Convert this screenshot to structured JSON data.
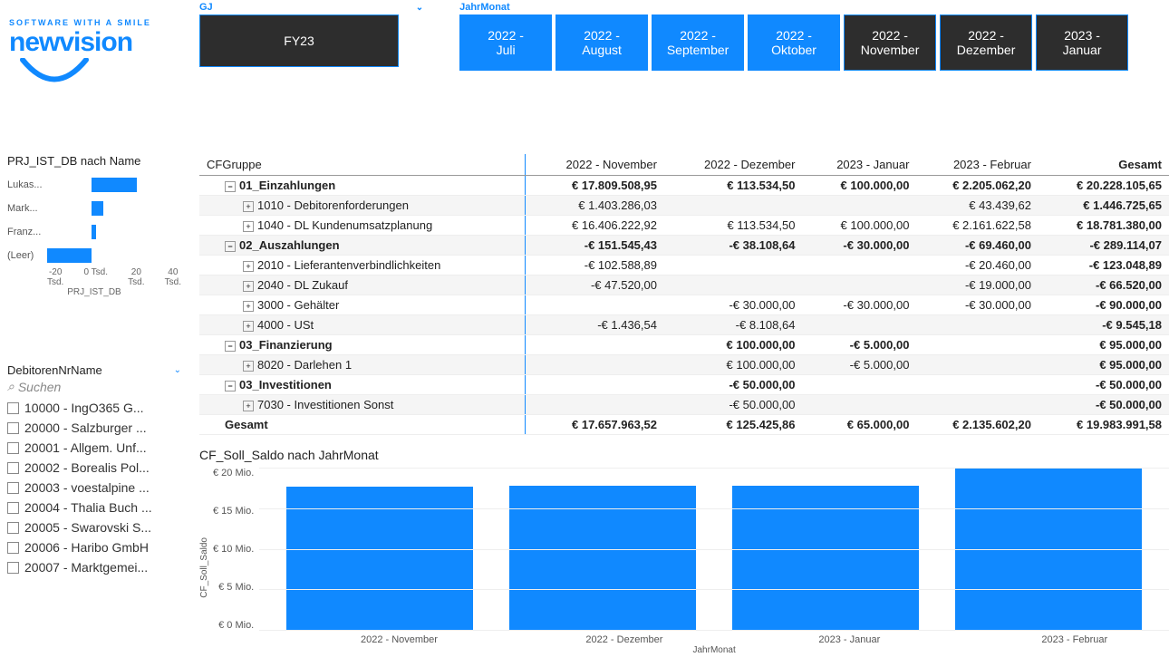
{
  "logo": {
    "tagline": "SOFTWARE WITH A SMILE",
    "name": "newvision"
  },
  "slicers": {
    "gj": {
      "label": "GJ",
      "value": "FY23"
    },
    "jahrmonat": {
      "label": "JahrMonat",
      "items": [
        {
          "label": "2022 - Juli",
          "selected": true
        },
        {
          "label": "2022 - August",
          "selected": true
        },
        {
          "label": "2022 - September",
          "selected": true
        },
        {
          "label": "2022 - Oktober",
          "selected": true
        },
        {
          "label": "2022 - November",
          "selected": false
        },
        {
          "label": "2022 - Dezember",
          "selected": false
        },
        {
          "label": "2023 - Januar",
          "selected": false
        }
      ]
    }
  },
  "mini_chart": {
    "title": "PRJ_IST_DB nach Name",
    "type": "bar-horizontal",
    "x_label": "PRJ_IST_DB",
    "categories": [
      "Lukas...",
      "Mark...",
      "Franz...",
      "(Leer)"
    ],
    "values": [
      20,
      5,
      2,
      -20
    ],
    "bar_color": "#1089ff",
    "xlim": [
      -20,
      40
    ],
    "x_ticks": [
      {
        "top": "-20",
        "bot": "Tsd."
      },
      {
        "top": "0 Tsd.",
        "bot": ""
      },
      {
        "top": "20",
        "bot": "Tsd."
      },
      {
        "top": "40",
        "bot": "Tsd."
      }
    ]
  },
  "debitor_filter": {
    "title": "DebitorenNrName",
    "search_placeholder": "Suchen",
    "items": [
      "10000 - IngO365 G...",
      "20000 - Salzburger ...",
      "20001 - Allgem. Unf...",
      "20002 - Borealis Pol...",
      "20003 - voestalpine ...",
      "20004 - Thalia Buch ...",
      "20005 - Swarovski S...",
      "20006 - Haribo GmbH",
      "20007 - Marktgemei..."
    ]
  },
  "table": {
    "header_first": "CFGruppe",
    "columns": [
      "2022 - November",
      "2022 - Dezember",
      "2023 - Januar",
      "2023 - Februar",
      "Gesamt"
    ],
    "rows": [
      {
        "level": 0,
        "exp": "⊟",
        "label": "01_Einzahlungen",
        "bold": true,
        "cells": [
          "€ 17.809.508,95",
          "€ 113.534,50",
          "€ 100.000,00",
          "€ 2.205.062,20",
          "€ 20.228.105,65"
        ]
      },
      {
        "level": 1,
        "exp": "⊞",
        "label": "1010 - Debitorenforderungen",
        "grey": true,
        "cells": [
          "€ 1.403.286,03",
          "",
          "",
          "€ 43.439,62",
          "€ 1.446.725,65"
        ]
      },
      {
        "level": 1,
        "exp": "⊞",
        "label": "1040 - DL Kundenumsatzplanung",
        "cells": [
          "€ 16.406.222,92",
          "€ 113.534,50",
          "€ 100.000,00",
          "€ 2.161.622,58",
          "€ 18.781.380,00"
        ]
      },
      {
        "level": 0,
        "exp": "⊟",
        "label": "02_Auszahlungen",
        "bold": true,
        "grey": true,
        "cells": [
          "-€ 151.545,43",
          "-€ 38.108,64",
          "-€ 30.000,00",
          "-€ 69.460,00",
          "-€ 289.114,07"
        ]
      },
      {
        "level": 1,
        "exp": "⊞",
        "label": "2010 - Lieferantenverbindlichkeiten",
        "cells": [
          "-€ 102.588,89",
          "",
          "",
          "-€ 20.460,00",
          "-€ 123.048,89"
        ]
      },
      {
        "level": 1,
        "exp": "⊞",
        "label": "2040 - DL Zukauf",
        "grey": true,
        "cells": [
          "-€ 47.520,00",
          "",
          "",
          "-€ 19.000,00",
          "-€ 66.520,00"
        ]
      },
      {
        "level": 1,
        "exp": "⊞",
        "label": "3000 - Gehälter",
        "cells": [
          "",
          "-€ 30.000,00",
          "-€ 30.000,00",
          "-€ 30.000,00",
          "-€ 90.000,00"
        ]
      },
      {
        "level": 1,
        "exp": "⊞",
        "label": "4000 - USt",
        "grey": true,
        "cells": [
          "-€ 1.436,54",
          "-€ 8.108,64",
          "",
          "",
          "-€ 9.545,18"
        ]
      },
      {
        "level": 0,
        "exp": "⊟",
        "label": "03_Finanzierung",
        "bold": true,
        "cells": [
          "",
          "€ 100.000,00",
          "-€ 5.000,00",
          "",
          "€ 95.000,00"
        ]
      },
      {
        "level": 1,
        "exp": "⊞",
        "label": "8020 - Darlehen 1",
        "grey": true,
        "cells": [
          "",
          "€ 100.000,00",
          "-€ 5.000,00",
          "",
          "€ 95.000,00"
        ]
      },
      {
        "level": 0,
        "exp": "⊟",
        "label": "03_Investitionen",
        "bold": true,
        "cells": [
          "",
          "-€ 50.000,00",
          "",
          "",
          "-€ 50.000,00"
        ]
      },
      {
        "level": 1,
        "exp": "⊞",
        "label": "7030 - Investitionen Sonst",
        "grey": true,
        "cells": [
          "",
          "-€ 50.000,00",
          "",
          "",
          "-€ 50.000,00"
        ]
      },
      {
        "level": 0,
        "exp": "",
        "label": "Gesamt",
        "bold": true,
        "indent": 1,
        "cells": [
          "€ 17.657.963,52",
          "€ 125.425,86",
          "€ 65.000,00",
          "€ 2.135.602,20",
          "€ 19.983.991,58"
        ]
      }
    ]
  },
  "bar_chart": {
    "title": "CF_Soll_Saldo nach JahrMonat",
    "type": "bar",
    "y_label": "CF_Soll_Saldo",
    "x_label": "JahrMonat",
    "categories": [
      "2022 - November",
      "2022 - Dezember",
      "2023 - Januar",
      "2023 - Februar"
    ],
    "values": [
      17.7,
      17.8,
      17.8,
      20.0
    ],
    "bar_color": "#1089ff",
    "ylim": [
      0,
      20
    ],
    "y_ticks": [
      "€ 20 Mio.",
      "€ 15 Mio.",
      "€ 10 Mio.",
      "€ 5 Mio.",
      "€ 0 Mio."
    ],
    "background_color": "#ffffff",
    "grid_color": "#eeeeee"
  }
}
